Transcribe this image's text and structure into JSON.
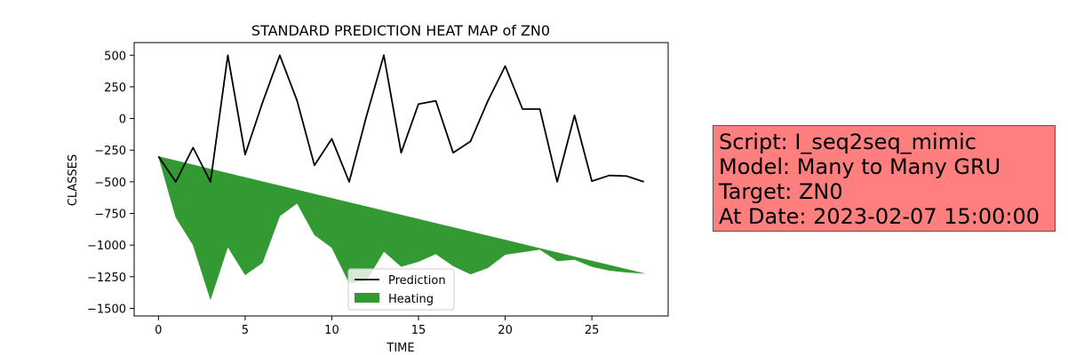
{
  "chart_data": {
    "type": "line",
    "title": "STANDARD PREDICTION HEAT MAP of ZN0",
    "xlabel": "TIME",
    "ylabel": "CLASSES",
    "xlim": [
      -1.4,
      29.4
    ],
    "ylim": [
      -1560,
      600
    ],
    "xticks": [
      0,
      5,
      10,
      15,
      20,
      25
    ],
    "yticks": [
      500,
      250,
      0,
      -250,
      -500,
      -750,
      -1000,
      -1250,
      -1500
    ],
    "ytick_labels": [
      "500",
      "250",
      "0",
      "−250",
      "−500",
      "−750",
      "−1000",
      "−1250",
      "−1500"
    ],
    "grid": false,
    "legend_position": "lower center",
    "x": [
      0,
      1,
      2,
      3,
      4,
      5,
      6,
      7,
      8,
      9,
      10,
      11,
      12,
      13,
      14,
      15,
      16,
      17,
      18,
      19,
      20,
      21,
      22,
      23,
      24,
      25,
      26,
      27,
      28
    ],
    "series": [
      {
        "name": "Prediction",
        "kind": "line",
        "color": "#000000",
        "values": [
          -300,
          -500,
          -230,
          -500,
          500,
          -285,
          125,
          500,
          140,
          -370,
          -160,
          -500,
          20,
          500,
          -270,
          115,
          140,
          -270,
          -180,
          140,
          415,
          75,
          75,
          -500,
          25,
          -495,
          -450,
          -455,
          -500
        ]
      },
      {
        "name": "Heating",
        "kind": "area",
        "color": "#339933",
        "upper": [
          -300,
          -333,
          -366,
          -399,
          -432,
          -465,
          -498,
          -531,
          -564,
          -597,
          -630,
          -663,
          -696,
          -729,
          -762,
          -795,
          -828,
          -861,
          -894,
          -927,
          -960,
          -993,
          -1026,
          -1059,
          -1092,
          -1125,
          -1158,
          -1191,
          -1224
        ],
        "lower": [
          -300,
          -780,
          -1000,
          -1430,
          -1015,
          -1235,
          -1140,
          -770,
          -670,
          -920,
          -1020,
          -1300,
          -1280,
          -1050,
          -1170,
          -1130,
          -1070,
          -1165,
          -1230,
          -1180,
          -1075,
          -1055,
          -1035,
          -1125,
          -1115,
          -1170,
          -1200,
          -1215,
          -1224
        ]
      }
    ]
  },
  "info_box": {
    "background": "#ff7f7f",
    "lines": [
      "Script: I_seq2seq_mimic",
      "Model: Many to Many GRU",
      "Target: ZN0",
      "At Date: 2023-02-07 15:00:00"
    ]
  }
}
